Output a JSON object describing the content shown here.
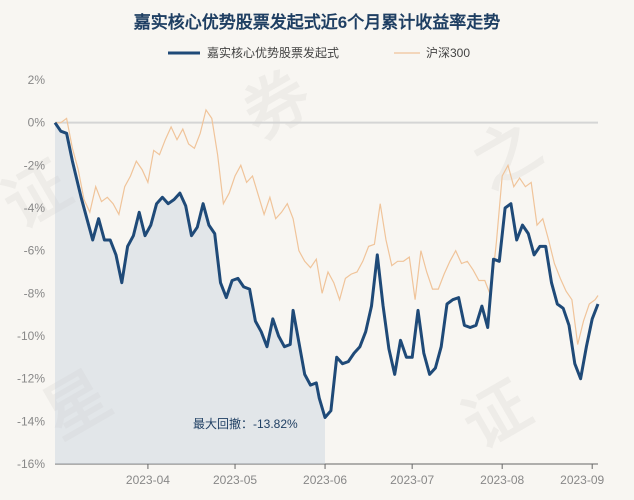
{
  "chart_data": {
    "type": "line",
    "title": "嘉实核心优势股票发起式近6个月累计收益率走势",
    "ylim": [
      -16,
      2
    ],
    "yticks": [
      2,
      0,
      -2,
      -4,
      -6,
      -8,
      -10,
      -12,
      -14,
      -16
    ],
    "ytick_labels": [
      "2%",
      "0%",
      "-2%",
      "-4%",
      "-6%",
      "-8%",
      "-10%",
      "-12%",
      "-14%",
      "-16%"
    ],
    "xlim": [
      0,
      187
    ],
    "xticks": [
      32,
      62,
      93,
      123,
      154,
      185
    ],
    "xtick_labels": [
      "2023-04",
      "2023-05",
      "2023-06",
      "2023-07",
      "2023-08",
      "2023-09"
    ],
    "legend": "top-center",
    "grid": "horizontal",
    "series": [
      {
        "name": "嘉实核心优势股票发起式",
        "color": "#1f4a78",
        "x": [
          0,
          2,
          4,
          6,
          9,
          11,
          13,
          15,
          17,
          19,
          21,
          23,
          25,
          27,
          29,
          31,
          33,
          35,
          37,
          39,
          41,
          43,
          45,
          47,
          49,
          51,
          53,
          55,
          57,
          59,
          61,
          63,
          65,
          67,
          69,
          71,
          73,
          75,
          77,
          79,
          81,
          82,
          84,
          86,
          88,
          90,
          91,
          93,
          95,
          97,
          99,
          101,
          103,
          105,
          107,
          109,
          111,
          113,
          115,
          117,
          119,
          121,
          123,
          125,
          127,
          129,
          131,
          133,
          135,
          137,
          139,
          141,
          143,
          145,
          147,
          149,
          151,
          153,
          155,
          157,
          159,
          161,
          163,
          165,
          167,
          169,
          171,
          173,
          175,
          177,
          179,
          181,
          183,
          185,
          187
        ],
        "values": [
          0.0,
          -0.4,
          -0.5,
          -1.8,
          -3.5,
          -4.5,
          -5.5,
          -4.5,
          -5.5,
          -5.5,
          -6.2,
          -7.5,
          -5.8,
          -5.3,
          -4.2,
          -5.3,
          -4.8,
          -3.8,
          -3.5,
          -3.8,
          -3.6,
          -3.3,
          -3.9,
          -5.3,
          -4.9,
          -3.8,
          -4.8,
          -5.2,
          -7.5,
          -8.2,
          -7.4,
          -7.3,
          -7.7,
          -7.8,
          -9.3,
          -9.8,
          -10.5,
          -9.2,
          -10.0,
          -10.5,
          -10.4,
          -8.8,
          -10.3,
          -11.8,
          -12.3,
          -12.2,
          -12.9,
          -13.82,
          -13.5,
          -11.0,
          -11.3,
          -11.2,
          -10.8,
          -10.5,
          -9.8,
          -8.6,
          -6.2,
          -8.6,
          -10.6,
          -11.8,
          -10.2,
          -11.0,
          -11.0,
          -8.8,
          -10.8,
          -11.8,
          -11.5,
          -10.5,
          -8.5,
          -8.3,
          -8.2,
          -9.5,
          -9.6,
          -9.5,
          -8.6,
          -9.6,
          -6.4,
          -6.5,
          -4.0,
          -3.8,
          -5.5,
          -4.8,
          -5.2,
          -6.2,
          -5.8,
          -5.8,
          -7.5,
          -8.5,
          -8.7,
          -9.5,
          -11.3,
          -12.0,
          -10.5,
          -9.2,
          -8.5
        ],
        "max_drawdown_label": "最大回撤：-13.82%"
      },
      {
        "name": "沪深300",
        "color": "#f0c49a",
        "x": [
          0,
          2,
          4,
          6,
          8,
          10,
          12,
          14,
          16,
          18,
          20,
          22,
          24,
          26,
          28,
          30,
          32,
          34,
          36,
          38,
          40,
          42,
          44,
          46,
          48,
          50,
          52,
          54,
          56,
          58,
          60,
          62,
          64,
          66,
          68,
          70,
          72,
          74,
          76,
          78,
          80,
          82,
          84,
          86,
          88,
          90,
          92,
          94,
          96,
          98,
          100,
          102,
          104,
          106,
          108,
          110,
          112,
          114,
          116,
          118,
          120,
          122,
          124,
          126,
          128,
          130,
          132,
          134,
          136,
          138,
          140,
          142,
          144,
          146,
          148,
          150,
          152,
          154,
          156,
          158,
          160,
          162,
          164,
          166,
          168,
          170,
          172,
          174,
          176,
          178,
          180,
          182,
          184,
          186,
          187
        ],
        "values": [
          0.0,
          0.0,
          0.2,
          -1.2,
          -2.2,
          -3.6,
          -4.2,
          -3.0,
          -3.7,
          -3.5,
          -3.8,
          -4.3,
          -3.0,
          -2.5,
          -1.8,
          -2.2,
          -2.8,
          -1.3,
          -1.5,
          -0.8,
          -0.2,
          -0.8,
          -0.3,
          -1.0,
          -1.2,
          -0.5,
          0.6,
          0.2,
          -1.5,
          -3.8,
          -3.3,
          -2.5,
          -2.0,
          -2.8,
          -2.5,
          -3.4,
          -4.3,
          -3.5,
          -4.5,
          -4.2,
          -3.8,
          -4.5,
          -6.0,
          -6.5,
          -6.8,
          -6.4,
          -8.0,
          -7.0,
          -7.5,
          -8.3,
          -7.3,
          -7.1,
          -7.0,
          -6.5,
          -5.8,
          -5.7,
          -3.8,
          -5.5,
          -6.7,
          -6.5,
          -6.5,
          -6.3,
          -8.3,
          -6.0,
          -7.0,
          -7.8,
          -7.8,
          -7.1,
          -6.5,
          -6.0,
          -6.6,
          -6.5,
          -6.9,
          -7.4,
          -7.4,
          -8.1,
          -5.6,
          -2.5,
          -2.0,
          -3.0,
          -2.6,
          -3.0,
          -2.8,
          -4.8,
          -4.5,
          -5.5,
          -6.6,
          -7.3,
          -7.9,
          -8.3,
          -10.4,
          -9.3,
          -8.5,
          -8.3,
          -8.1
        ]
      }
    ]
  }
}
